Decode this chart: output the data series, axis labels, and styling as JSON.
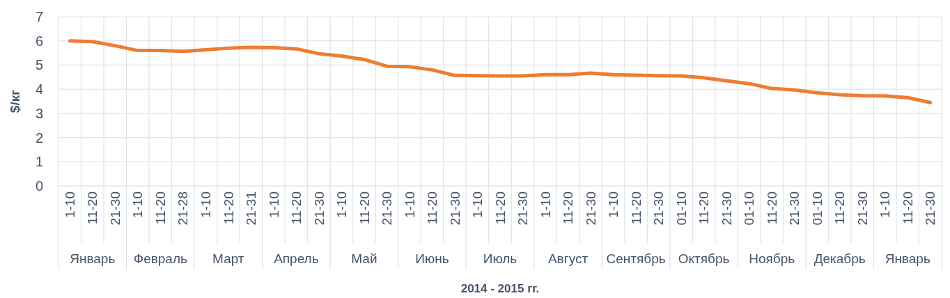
{
  "chart_data": {
    "type": "line",
    "xlabel": "2014 - 2015 гг.",
    "ylabel": "$/кг",
    "categories": [
      "1-10",
      "11-20",
      "21-30",
      "1-10",
      "11-20",
      "21-28",
      "1-10",
      "11-20",
      "21-31",
      "1-10",
      "11-20",
      "21-30",
      "1-10",
      "11-20",
      "21-30",
      "1-10",
      "11-20",
      "21-30",
      "1-10",
      "11-20",
      "21-30",
      "1-10",
      "11-20",
      "21-30",
      "1-10",
      "11-20",
      "21-30",
      "01-10",
      "11-20",
      "21-30",
      "01-10",
      "11-20",
      "21-30",
      "01-10",
      "11-20",
      "21-30",
      "1-10",
      "11-20",
      "21-30"
    ],
    "annotations": [
      "Январь",
      "Февраль",
      "Март",
      "Апрель",
      "Май",
      "Июнь",
      "Июль",
      "Август",
      "Сентябрь",
      "Октябрь",
      "Ноябрь",
      "Декабрь",
      "Январь"
    ],
    "series": [
      {
        "color": "#ed7d31",
        "values": [
          6.0,
          5.97,
          5.8,
          5.6,
          5.6,
          5.57,
          5.63,
          5.7,
          5.73,
          5.72,
          5.67,
          5.47,
          5.37,
          5.23,
          4.95,
          4.93,
          4.8,
          4.57,
          4.56,
          4.55,
          4.55,
          4.6,
          4.6,
          4.67,
          4.6,
          4.58,
          4.56,
          4.55,
          4.47,
          4.35,
          4.23,
          4.03,
          3.97,
          3.85,
          3.77,
          3.73,
          3.72,
          3.65,
          3.45
        ]
      }
    ],
    "ylim": [
      0,
      7
    ],
    "yticks": [
      0,
      1,
      2,
      3,
      4,
      5,
      6,
      7
    ],
    "grid": true,
    "marker": "none",
    "line_style": "solid"
  }
}
